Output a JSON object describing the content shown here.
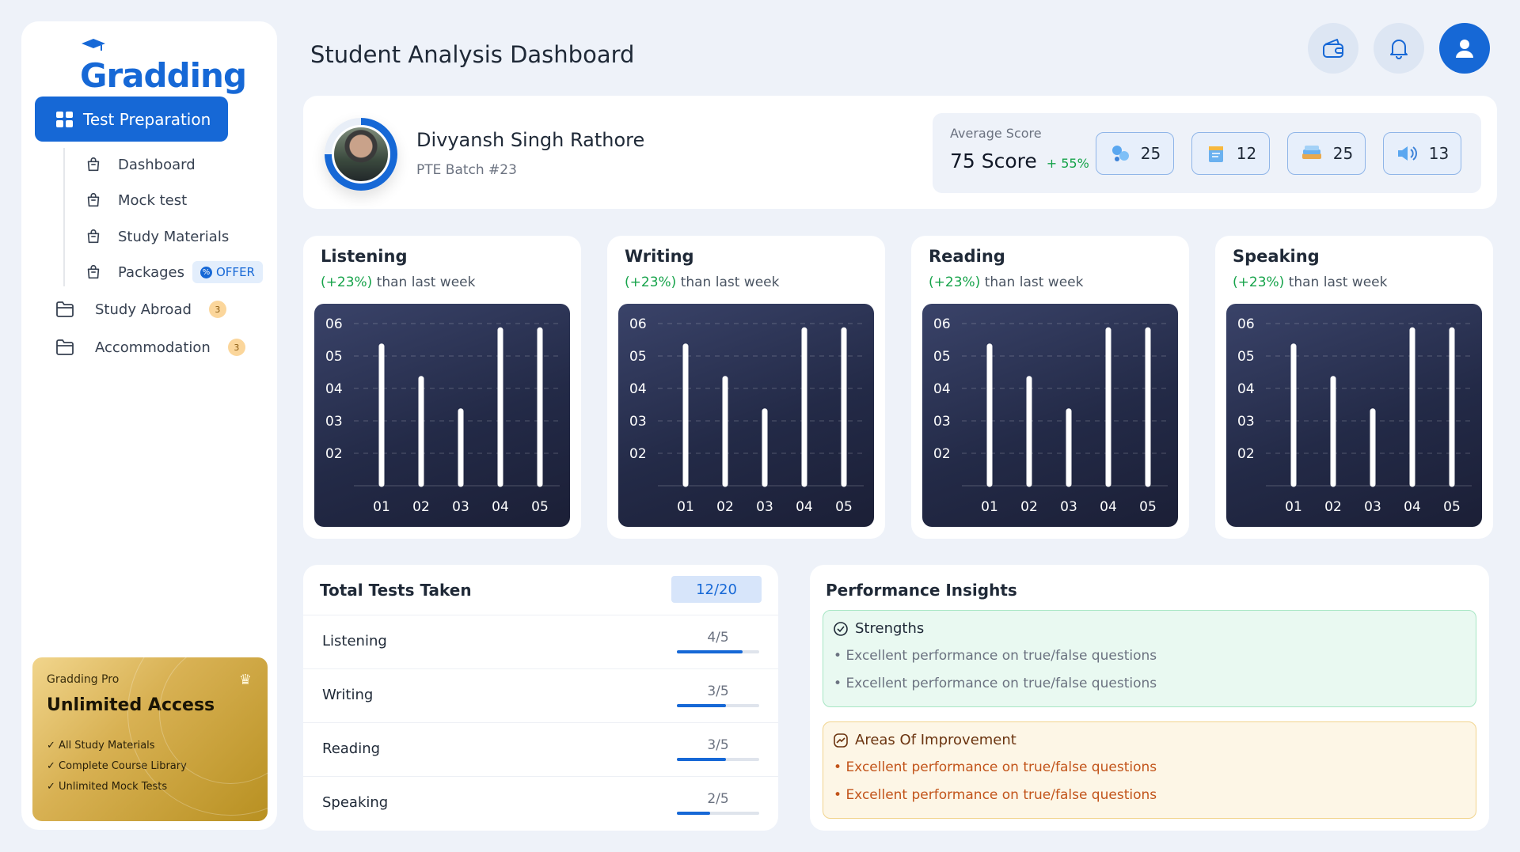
{
  "brand": {
    "name": "Gradding",
    "color": "#1668d6"
  },
  "sidebar": {
    "primary": {
      "label": "Test Preparation"
    },
    "sub_items": [
      {
        "label": "Dashboard"
      },
      {
        "label": "Mock test"
      },
      {
        "label": "Study Materials"
      },
      {
        "label": "Packages",
        "badge": "OFFER"
      }
    ],
    "items": [
      {
        "label": "Study Abroad",
        "count": "3"
      },
      {
        "label": "Accommodation",
        "count": "3"
      }
    ],
    "promo": {
      "label": "Gradding Pro",
      "title": "Unlimited Access",
      "features": [
        "All Study Materials",
        "Complete Course Library",
        "Unlimited Mock Tests"
      ]
    }
  },
  "header": {
    "title": "Student Analysis Dashboard",
    "icons": [
      "wallet-icon",
      "bell-icon",
      "user-icon"
    ]
  },
  "profile": {
    "name": "Divyansh Singh Rathore",
    "batch": "PTE Batch #23",
    "avg_label": "Average Score",
    "avg_score": "75 Score",
    "avg_delta": "+ 55%",
    "stats": [
      {
        "icon": "listening-icon",
        "value": "25"
      },
      {
        "icon": "writing-icon",
        "value": "12"
      },
      {
        "icon": "reading-icon",
        "value": "25"
      },
      {
        "icon": "speaking-icon",
        "value": "13"
      }
    ]
  },
  "skills": [
    {
      "title": "Listening",
      "delta": "(+23%)",
      "note": "than last week"
    },
    {
      "title": "Writing",
      "delta": "(+23%)",
      "note": "than last week"
    },
    {
      "title": "Reading",
      "delta": "(+23%)",
      "note": "than last week"
    },
    {
      "title": "Speaking",
      "delta": "(+23%)",
      "note": "than last week"
    }
  ],
  "chart_data": [
    {
      "type": "bar",
      "title": "Listening",
      "categories": [
        "01",
        "02",
        "03",
        "04",
        "05"
      ],
      "values": [
        5.3,
        4.3,
        3.3,
        5.8,
        5.8
      ],
      "y_ticks": [
        "06",
        "05",
        "04",
        "03",
        "02"
      ],
      "ylim": [
        1,
        6
      ]
    },
    {
      "type": "bar",
      "title": "Writing",
      "categories": [
        "01",
        "02",
        "03",
        "04",
        "05"
      ],
      "values": [
        5.3,
        4.3,
        3.3,
        5.8,
        5.8
      ],
      "y_ticks": [
        "06",
        "05",
        "04",
        "03",
        "02"
      ],
      "ylim": [
        1,
        6
      ]
    },
    {
      "type": "bar",
      "title": "Reading",
      "categories": [
        "01",
        "02",
        "03",
        "04",
        "05"
      ],
      "values": [
        5.3,
        4.3,
        3.3,
        5.8,
        5.8
      ],
      "y_ticks": [
        "06",
        "05",
        "04",
        "03",
        "02"
      ],
      "ylim": [
        1,
        6
      ]
    },
    {
      "type": "bar",
      "title": "Speaking",
      "categories": [
        "01",
        "02",
        "03",
        "04",
        "05"
      ],
      "values": [
        5.3,
        4.3,
        3.3,
        5.8,
        5.8
      ],
      "y_ticks": [
        "06",
        "05",
        "04",
        "03",
        "02"
      ],
      "ylim": [
        1,
        6
      ]
    }
  ],
  "tests": {
    "title": "Total Tests Taken",
    "total": "12/20",
    "rows": [
      {
        "label": "Listening",
        "value": "4/5",
        "progress": 0.8
      },
      {
        "label": "Writing",
        "value": "3/5",
        "progress": 0.6
      },
      {
        "label": "Reading",
        "value": "3/5",
        "progress": 0.6
      },
      {
        "label": "Speaking",
        "value": "2/5",
        "progress": 0.4
      }
    ]
  },
  "insights": {
    "title": "Performance Insights",
    "strengths": {
      "title": "Strengths",
      "items": [
        "Excellent performance on true/false questions",
        "Excellent performance on true/false questions"
      ]
    },
    "improvement": {
      "title": "Areas Of Improvement",
      "items": [
        "Excellent performance on true/false questions",
        "Excellent performance on true/false questions"
      ]
    }
  },
  "colors": {
    "primary": "#1668d6",
    "positive": "#16a34a",
    "warning": "#c2541a",
    "chart_bg": "#232a47"
  }
}
